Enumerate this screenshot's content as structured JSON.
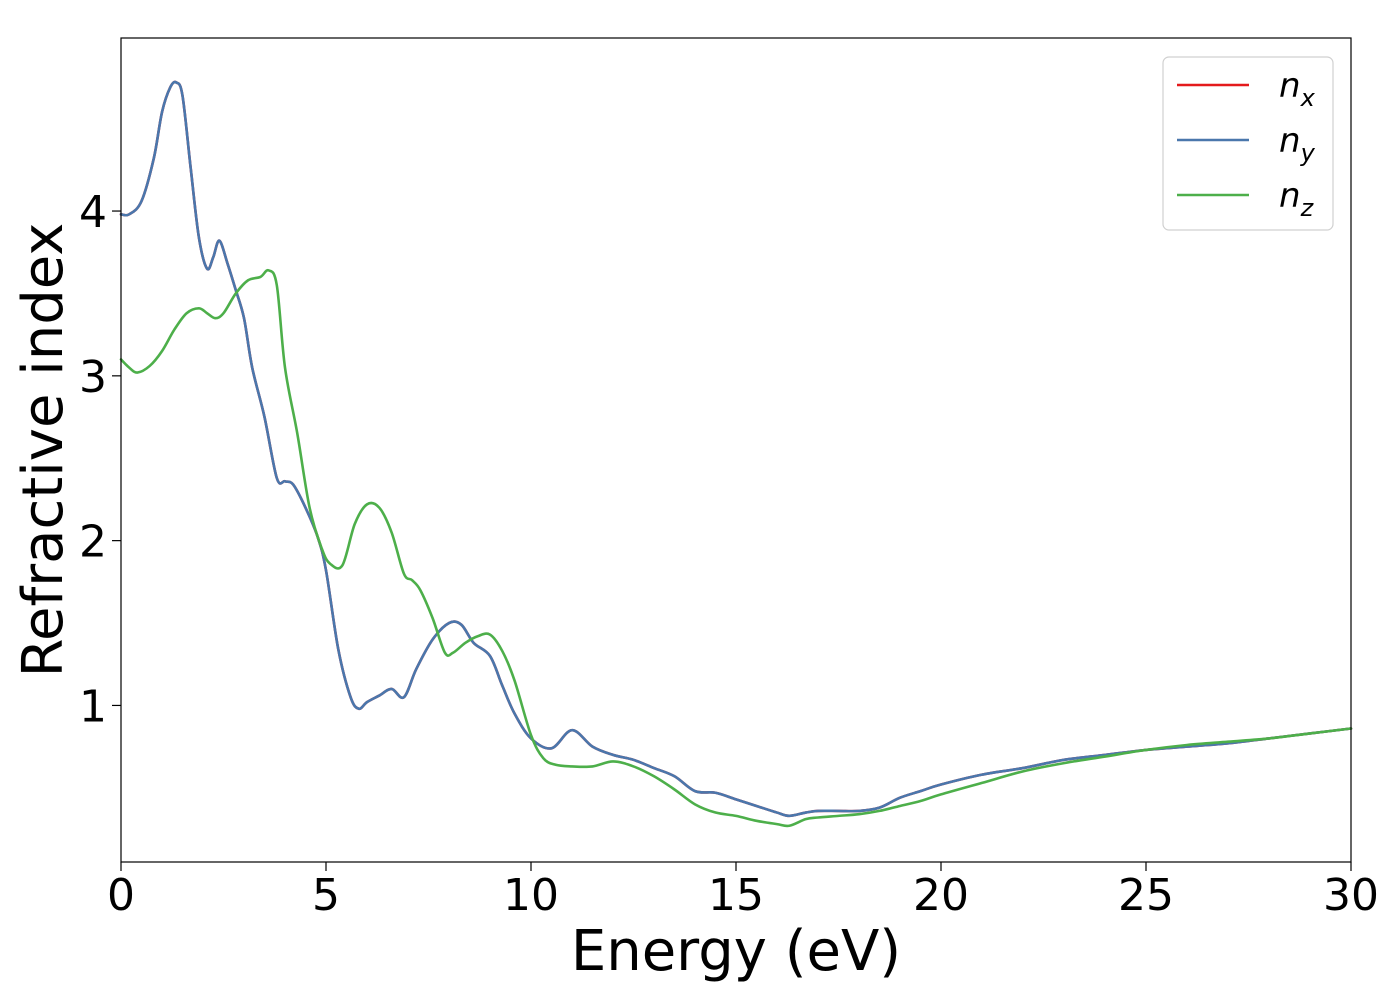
{
  "chart_data": {
    "type": "line",
    "xlabel": "Energy (eV)",
    "ylabel": "Refractive index",
    "xlim": [
      0,
      30
    ],
    "ylim": [
      0.05,
      5.05
    ],
    "xticks": [
      0,
      5,
      10,
      15,
      20,
      25,
      30
    ],
    "yticks": [
      1,
      2,
      3,
      4
    ],
    "grid": false,
    "legend": {
      "position": "top-right",
      "title": ""
    },
    "series": [
      {
        "name": "n_x",
        "label_base": "n",
        "label_sub": "x",
        "color": "#e41a1c",
        "x": [
          0,
          0.2,
          0.5,
          0.8,
          1.0,
          1.2,
          1.35,
          1.5,
          1.7,
          1.9,
          2.1,
          2.25,
          2.4,
          2.6,
          2.8,
          3.0,
          3.2,
          3.5,
          3.8,
          4.0,
          4.2,
          4.5,
          4.8,
          5.0,
          5.3,
          5.6,
          5.8,
          6.0,
          6.3,
          6.6,
          6.9,
          7.2,
          7.6,
          8.0,
          8.3,
          8.6,
          9.0,
          9.3,
          9.6,
          10.0,
          10.5,
          11.0,
          11.5,
          12.0,
          12.5,
          13.0,
          13.5,
          14.0,
          14.5,
          15.0,
          15.5,
          16.0,
          16.3,
          16.7,
          17.0,
          17.5,
          18.0,
          18.5,
          19.0,
          19.5,
          20.0,
          21.0,
          22.0,
          23.0,
          24.0,
          25.0,
          26.0,
          27.0,
          28.0,
          29.0,
          30.0
        ],
        "y": [
          3.98,
          3.98,
          4.06,
          4.32,
          4.6,
          4.75,
          4.78,
          4.7,
          4.26,
          3.84,
          3.65,
          3.72,
          3.82,
          3.68,
          3.52,
          3.35,
          3.05,
          2.75,
          2.38,
          2.36,
          2.34,
          2.2,
          2.02,
          1.82,
          1.34,
          1.05,
          0.98,
          1.02,
          1.06,
          1.1,
          1.05,
          1.22,
          1.4,
          1.5,
          1.49,
          1.38,
          1.3,
          1.12,
          0.95,
          0.8,
          0.74,
          0.85,
          0.75,
          0.7,
          0.67,
          0.62,
          0.57,
          0.48,
          0.47,
          0.43,
          0.39,
          0.35,
          0.33,
          0.35,
          0.36,
          0.36,
          0.36,
          0.38,
          0.44,
          0.48,
          0.52,
          0.58,
          0.62,
          0.67,
          0.7,
          0.73,
          0.75,
          0.77,
          0.8,
          0.83,
          0.86
        ]
      },
      {
        "name": "n_y",
        "label_base": "n",
        "label_sub": "y",
        "color": "#4a77ac",
        "x": [
          0,
          0.2,
          0.5,
          0.8,
          1.0,
          1.2,
          1.35,
          1.5,
          1.7,
          1.9,
          2.1,
          2.25,
          2.4,
          2.6,
          2.8,
          3.0,
          3.2,
          3.5,
          3.8,
          4.0,
          4.2,
          4.5,
          4.8,
          5.0,
          5.3,
          5.6,
          5.8,
          6.0,
          6.3,
          6.6,
          6.9,
          7.2,
          7.6,
          8.0,
          8.3,
          8.6,
          9.0,
          9.3,
          9.6,
          10.0,
          10.5,
          11.0,
          11.5,
          12.0,
          12.5,
          13.0,
          13.5,
          14.0,
          14.5,
          15.0,
          15.5,
          16.0,
          16.3,
          16.7,
          17.0,
          17.5,
          18.0,
          18.5,
          19.0,
          19.5,
          20.0,
          21.0,
          22.0,
          23.0,
          24.0,
          25.0,
          26.0,
          27.0,
          28.0,
          29.0,
          30.0
        ],
        "y": [
          3.98,
          3.98,
          4.06,
          4.32,
          4.6,
          4.75,
          4.78,
          4.7,
          4.26,
          3.84,
          3.65,
          3.72,
          3.82,
          3.68,
          3.52,
          3.35,
          3.05,
          2.75,
          2.38,
          2.36,
          2.34,
          2.2,
          2.02,
          1.82,
          1.34,
          1.05,
          0.98,
          1.02,
          1.06,
          1.1,
          1.05,
          1.22,
          1.4,
          1.5,
          1.49,
          1.38,
          1.3,
          1.12,
          0.95,
          0.8,
          0.74,
          0.85,
          0.75,
          0.7,
          0.67,
          0.62,
          0.57,
          0.48,
          0.47,
          0.43,
          0.39,
          0.35,
          0.33,
          0.35,
          0.36,
          0.36,
          0.36,
          0.38,
          0.44,
          0.48,
          0.52,
          0.58,
          0.62,
          0.67,
          0.7,
          0.73,
          0.75,
          0.77,
          0.8,
          0.83,
          0.86
        ]
      },
      {
        "name": "n_z",
        "label_base": "n",
        "label_sub": "z",
        "color": "#4daf4a",
        "x": [
          0,
          0.2,
          0.4,
          0.7,
          1.0,
          1.3,
          1.6,
          1.9,
          2.1,
          2.3,
          2.5,
          2.8,
          3.1,
          3.4,
          3.6,
          3.8,
          4.0,
          4.3,
          4.6,
          4.9,
          5.1,
          5.4,
          5.7,
          6.0,
          6.3,
          6.6,
          6.9,
          7.1,
          7.3,
          7.6,
          7.9,
          8.1,
          8.4,
          8.7,
          9.0,
          9.3,
          9.6,
          10.0,
          10.3,
          10.6,
          11.0,
          11.5,
          12.0,
          12.5,
          13.0,
          13.5,
          14.0,
          14.5,
          15.0,
          15.5,
          16.0,
          16.3,
          16.7,
          17.0,
          17.5,
          18.0,
          18.5,
          19.0,
          19.5,
          20.0,
          21.0,
          22.0,
          23.0,
          24.0,
          25.0,
          26.0,
          27.0,
          28.0,
          29.0,
          30.0
        ],
        "y": [
          3.1,
          3.05,
          3.02,
          3.06,
          3.15,
          3.28,
          3.38,
          3.41,
          3.38,
          3.35,
          3.38,
          3.5,
          3.58,
          3.6,
          3.64,
          3.55,
          3.05,
          2.65,
          2.2,
          1.95,
          1.86,
          1.85,
          2.1,
          2.22,
          2.2,
          2.05,
          1.8,
          1.76,
          1.7,
          1.53,
          1.32,
          1.32,
          1.38,
          1.42,
          1.43,
          1.33,
          1.15,
          0.82,
          0.68,
          0.64,
          0.63,
          0.63,
          0.66,
          0.63,
          0.57,
          0.49,
          0.4,
          0.35,
          0.33,
          0.3,
          0.28,
          0.27,
          0.31,
          0.32,
          0.33,
          0.34,
          0.36,
          0.39,
          0.42,
          0.46,
          0.53,
          0.6,
          0.65,
          0.69,
          0.73,
          0.76,
          0.78,
          0.8,
          0.83,
          0.86
        ]
      }
    ]
  }
}
